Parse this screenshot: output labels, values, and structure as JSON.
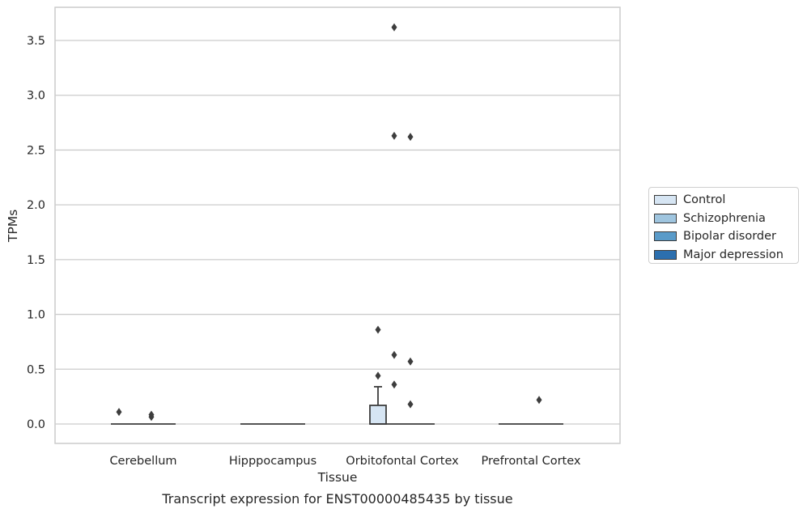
{
  "chart_data": {
    "type": "box",
    "caption": "Transcript expression for ENST00000485435 by tissue",
    "xlabel": "Tissue",
    "ylabel": "TPMs",
    "ylim": [
      -0.18,
      3.8
    ],
    "yticks": [
      "0.0",
      "0.5",
      "1.0",
      "1.5",
      "2.0",
      "2.5",
      "3.0",
      "3.5"
    ],
    "ytick_values": [
      0,
      0.5,
      1.0,
      1.5,
      2.0,
      2.5,
      3.0,
      3.5
    ],
    "grid": "horizontal",
    "categories": [
      "Cerebellum",
      "Hipppocampus",
      "Orbitofontal Cortex",
      "Prefrontal Cortex"
    ],
    "series": [
      {
        "name": "Control",
        "color": "#d6e5f3",
        "boxes": [
          {
            "q1": 0,
            "median": 0,
            "q3": 0,
            "whislo": 0,
            "whishi": 0,
            "fliers": [
              0.11
            ]
          },
          {
            "q1": 0,
            "median": 0,
            "q3": 0,
            "whislo": 0,
            "whishi": 0,
            "fliers": []
          },
          {
            "q1": 0,
            "median": 0,
            "q3": 0.17,
            "whislo": 0,
            "whishi": 0.34,
            "fliers": [
              0.44,
              0.86
            ]
          },
          {
            "q1": 0,
            "median": 0,
            "q3": 0,
            "whislo": 0,
            "whishi": 0,
            "fliers": []
          }
        ]
      },
      {
        "name": "Schizophrenia",
        "color": "#9fc5df",
        "boxes": [
          {
            "q1": 0,
            "median": 0,
            "q3": 0,
            "whislo": 0,
            "whishi": 0,
            "fliers": []
          },
          {
            "q1": 0,
            "median": 0,
            "q3": 0,
            "whislo": 0,
            "whishi": 0,
            "fliers": []
          },
          {
            "q1": 0,
            "median": 0,
            "q3": 0,
            "whislo": 0,
            "whishi": 0,
            "fliers": [
              0.36,
              0.63,
              2.63,
              3.62
            ]
          },
          {
            "q1": 0,
            "median": 0,
            "q3": 0,
            "whislo": 0,
            "whishi": 0,
            "fliers": []
          }
        ]
      },
      {
        "name": "Bipolar disorder",
        "color": "#5a9bc9",
        "boxes": [
          {
            "q1": 0,
            "median": 0,
            "q3": 0,
            "whislo": 0,
            "whishi": 0,
            "fliers": [
              0.065,
              0.085
            ]
          },
          {
            "q1": 0,
            "median": 0,
            "q3": 0,
            "whislo": 0,
            "whishi": 0,
            "fliers": []
          },
          {
            "q1": 0,
            "median": 0,
            "q3": 0,
            "whislo": 0,
            "whishi": 0,
            "fliers": [
              0.18,
              0.57,
              2.62
            ]
          },
          {
            "q1": 0,
            "median": 0,
            "q3": 0,
            "whislo": 0,
            "whishi": 0,
            "fliers": [
              0.22
            ]
          }
        ]
      },
      {
        "name": "Major depression",
        "color": "#2c6fae",
        "boxes": [
          {
            "q1": 0,
            "median": 0,
            "q3": 0,
            "whislo": 0,
            "whishi": 0,
            "fliers": []
          },
          {
            "q1": 0,
            "median": 0,
            "q3": 0,
            "whislo": 0,
            "whishi": 0,
            "fliers": []
          },
          {
            "q1": 0,
            "median": 0,
            "q3": 0,
            "whislo": 0,
            "whishi": 0,
            "fliers": []
          },
          {
            "q1": 0,
            "median": 0,
            "q3": 0,
            "whislo": 0,
            "whishi": 0,
            "fliers": []
          }
        ]
      }
    ],
    "legend_position": "right"
  }
}
